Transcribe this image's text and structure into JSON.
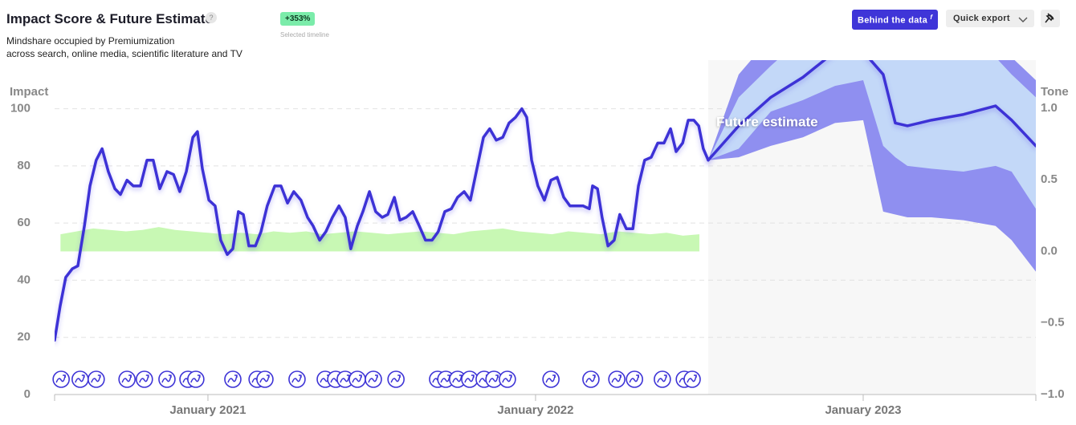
{
  "header": {
    "change": "+353%",
    "change_caption": "Selected timeline",
    "behind_button": "Behind the data",
    "behind_icon": "f",
    "export_button": "Quick export"
  },
  "chart_data": {
    "type": "line",
    "title": "Impact Score & Future Estimate",
    "subtitle": [
      "Mindshare occupied by Premiumization",
      "across search, online media, scientific literature and TV"
    ],
    "y_label": "Impact",
    "y2_label": "Tone",
    "annotation": "Future estimate",
    "xlim": [
      2020.532,
      2023.527
    ],
    "xticks": [
      {
        "value": 2021,
        "label": "January 2021"
      },
      {
        "value": 2022,
        "label": "January 2022"
      },
      {
        "value": 2023,
        "label": "January 2023"
      }
    ],
    "ylim": [
      0,
      117
    ],
    "yticks": [
      0,
      20,
      40,
      60,
      80,
      100
    ],
    "y2lim": [
      -1,
      1.336
    ],
    "y2ticks": [
      {
        "value": -1,
        "label": "−1.0"
      },
      {
        "value": -0.5,
        "label": "−0.5"
      },
      {
        "value": 0,
        "label": "0.0"
      },
      {
        "value": 0.5,
        "label": "0.5"
      },
      {
        "value": 1,
        "label": "1.0"
      }
    ],
    "grid": true,
    "forecast_color": "#f7f7f7",
    "series": [
      {
        "type": "area",
        "axis": "y2",
        "color": "#c8f8b4",
        "x": [
          2020.55,
          2020.6,
          2020.65,
          2020.7,
          2020.75,
          2020.8,
          2020.85,
          2020.9,
          2020.95,
          2021,
          2021.05,
          2021.1,
          2021.15,
          2021.2,
          2021.25,
          2021.3,
          2021.35,
          2021.4,
          2021.45,
          2021.5,
          2021.55,
          2021.6,
          2021.65,
          2021.7,
          2021.75,
          2021.8,
          2021.85,
          2021.9,
          2021.95,
          2022,
          2022.05,
          2022.1,
          2022.15,
          2022.2,
          2022.25,
          2022.3,
          2022.35,
          2022.4,
          2022.45,
          2022.5
        ],
        "values": [
          0.12,
          0.14,
          0.16,
          0.15,
          0.14,
          0.15,
          0.17,
          0.15,
          0.14,
          0.13,
          0.12,
          0.13,
          0.12,
          0.14,
          0.13,
          0.14,
          0.12,
          0.13,
          0.14,
          0.13,
          0.12,
          0.13,
          0.14,
          0.13,
          0.12,
          0.14,
          0.15,
          0.16,
          0.14,
          0.13,
          0.12,
          0.14,
          0.13,
          0.12,
          0.14,
          0.13,
          0.12,
          0.13,
          0.11,
          0.12
        ]
      },
      {
        "type": "band",
        "color": "#8f8ff0",
        "x": [
          2022.527,
          2022.62,
          2022.718,
          2022.816,
          2022.914,
          2023,
          2023.061,
          2023.098,
          2023.135,
          2023.208,
          2023.306,
          2023.404,
          2023.453,
          2023.527
        ],
        "upper": [
          82,
          112,
          125,
          130,
          135,
          135,
          130,
          128,
          125,
          125,
          125,
          122,
          118,
          110
        ],
        "lower": [
          82,
          83,
          87,
          90,
          95,
          96,
          64,
          63,
          62,
          62,
          61,
          59,
          54,
          43
        ]
      },
      {
        "type": "band",
        "color": "#c3d8f8",
        "x": [
          2022.527,
          2022.62,
          2022.718,
          2022.816,
          2022.914,
          2023,
          2023.061,
          2023.098,
          2023.135,
          2023.208,
          2023.306,
          2023.404,
          2023.453,
          2023.527
        ],
        "upper": [
          82,
          104,
          115,
          125,
          130,
          130,
          125,
          122,
          120,
          120,
          120,
          118,
          112,
          104
        ],
        "lower": [
          82,
          86,
          99,
          103,
          108,
          110,
          87,
          83,
          80,
          79,
          78,
          80,
          78,
          65
        ]
      },
      {
        "type": "line",
        "color": "#3d33d6",
        "x": [
          2020.532,
          2020.549,
          2020.566,
          2020.586,
          2020.603,
          2020.623,
          2020.64,
          2020.659,
          2020.677,
          2020.696,
          2020.716,
          2020.733,
          2020.753,
          2020.772,
          2020.794,
          2020.814,
          2020.833,
          2020.853,
          2020.875,
          2020.895,
          2020.914,
          2020.934,
          2020.954,
          2020.968,
          2020.983,
          2021.003,
          2021.022,
          2021.039,
          2021.059,
          2021.076,
          2021.093,
          2021.108,
          2021.125,
          2021.145,
          2021.162,
          2021.181,
          2021.204,
          2021.223,
          2021.243,
          2021.262,
          2021.284,
          2021.304,
          2021.321,
          2021.341,
          2021.36,
          2021.38,
          2021.4,
          2021.419,
          2021.436,
          2021.456,
          2021.473,
          2021.493,
          2021.512,
          2021.532,
          2021.549,
          2021.569,
          2021.586,
          2021.605,
          2021.625,
          2021.645,
          2021.664,
          2021.684,
          2021.703,
          2021.723,
          2021.743,
          2021.762,
          2021.782,
          2021.801,
          2021.821,
          2021.841,
          2021.86,
          2021.88,
          2021.9,
          2021.919,
          2021.939,
          2021.958,
          2021.973,
          2021.988,
          2022.007,
          2022.027,
          2022.047,
          2022.066,
          2022.086,
          2022.105,
          2022.125,
          2022.145,
          2022.164,
          2022.174,
          2022.189,
          2022.203,
          2022.221,
          2022.24,
          2022.257,
          2022.277,
          2022.297,
          2022.314,
          2022.333,
          2022.353,
          2022.373,
          2022.392,
          2022.412,
          2022.429,
          2022.449,
          2022.466,
          2022.483,
          2022.498,
          2022.512,
          2022.527
        ],
        "values": [
          19,
          31,
          41,
          44,
          45,
          59,
          73,
          82,
          86,
          78,
          72,
          70,
          75,
          73,
          73,
          82,
          82,
          72,
          78,
          77,
          71,
          78,
          90,
          92,
          79,
          68,
          66,
          54,
          49,
          51,
          64,
          63,
          52,
          52,
          57,
          66,
          73,
          73,
          67,
          71,
          68,
          62,
          59,
          54,
          57,
          62,
          66,
          62,
          51,
          59,
          64,
          71,
          64,
          62,
          63,
          69,
          61,
          62,
          64,
          59,
          54,
          54,
          57,
          64,
          65,
          69,
          71,
          68,
          79,
          90,
          93,
          89,
          90,
          95,
          97,
          100,
          97,
          82,
          73,
          68,
          75,
          76,
          69,
          66,
          66,
          66,
          65,
          73,
          72,
          62,
          52,
          54,
          63,
          58,
          58,
          73,
          82,
          83,
          88,
          88,
          93,
          85,
          88,
          96,
          96,
          94,
          86,
          82
        ]
      },
      {
        "type": "line",
        "color": "#3d33d6",
        "x": [
          2022.527,
          2022.62,
          2022.718,
          2022.816,
          2022.914,
          2023,
          2023.061,
          2023.098,
          2023.135,
          2023.208,
          2023.306,
          2023.404,
          2023.453,
          2023.527
        ],
        "values": [
          82,
          94,
          104,
          111,
          120,
          120,
          112,
          95,
          94,
          96,
          98,
          101,
          96,
          87
        ]
      }
    ],
    "events": {
      "color": "#3d33d6",
      "x": [
        2020.552,
        2020.61,
        2020.659,
        2020.753,
        2020.806,
        2020.875,
        2020.939,
        2020.963,
        2021.076,
        2021.15,
        2021.174,
        2021.272,
        2021.358,
        2021.39,
        2021.419,
        2021.456,
        2021.505,
        2021.574,
        2021.701,
        2021.726,
        2021.762,
        2021.799,
        2021.843,
        2021.873,
        2021.914,
        2022.047,
        2022.169,
        2022.248,
        2022.302,
        2022.387,
        2022.454,
        2022.478
      ]
    }
  }
}
